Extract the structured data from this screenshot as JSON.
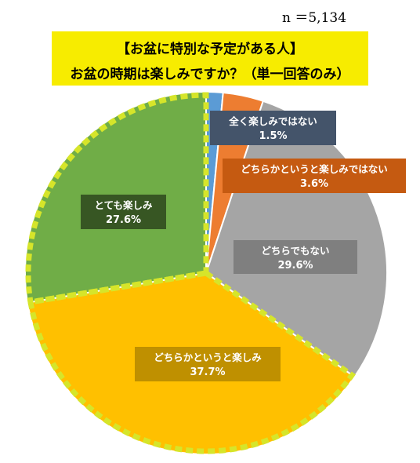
{
  "sample_size": "n ＝5,134",
  "chart_data": {
    "type": "pie",
    "title": [
      "【お盆に特別な予定がある人】",
      "お盆の時期は楽しみですか？（単一回答のみ）"
    ],
    "slices": [
      {
        "label": "全く楽しみではない",
        "value": 1.5,
        "value_label": "1.5%",
        "color": "#5b9bd5",
        "label_box_color": "#44546a"
      },
      {
        "label": "どちらかというと楽しみではない",
        "value": 3.6,
        "value_label": "3.6%",
        "color": "#ed7d31",
        "label_box_color": "#c55a11"
      },
      {
        "label": "どちらでもない",
        "value": 29.6,
        "value_label": "29.6%",
        "color": "#a5a5a5",
        "label_box_color": "#7f7f7f"
      },
      {
        "label": "どちらかというと楽しみ",
        "value": 37.7,
        "value_label": "37.7%",
        "color": "#ffc000",
        "label_box_color": "#bf9000",
        "dashed_outline": true
      },
      {
        "label": "とても楽しみ",
        "value": 27.6,
        "value_label": "27.6%",
        "color": "#70ad47",
        "label_box_color": "#375623",
        "dashed_outline": true
      }
    ],
    "dashed_outline_color": "#d6e52a",
    "start": "12 o'clock",
    "direction": "clockwise"
  }
}
